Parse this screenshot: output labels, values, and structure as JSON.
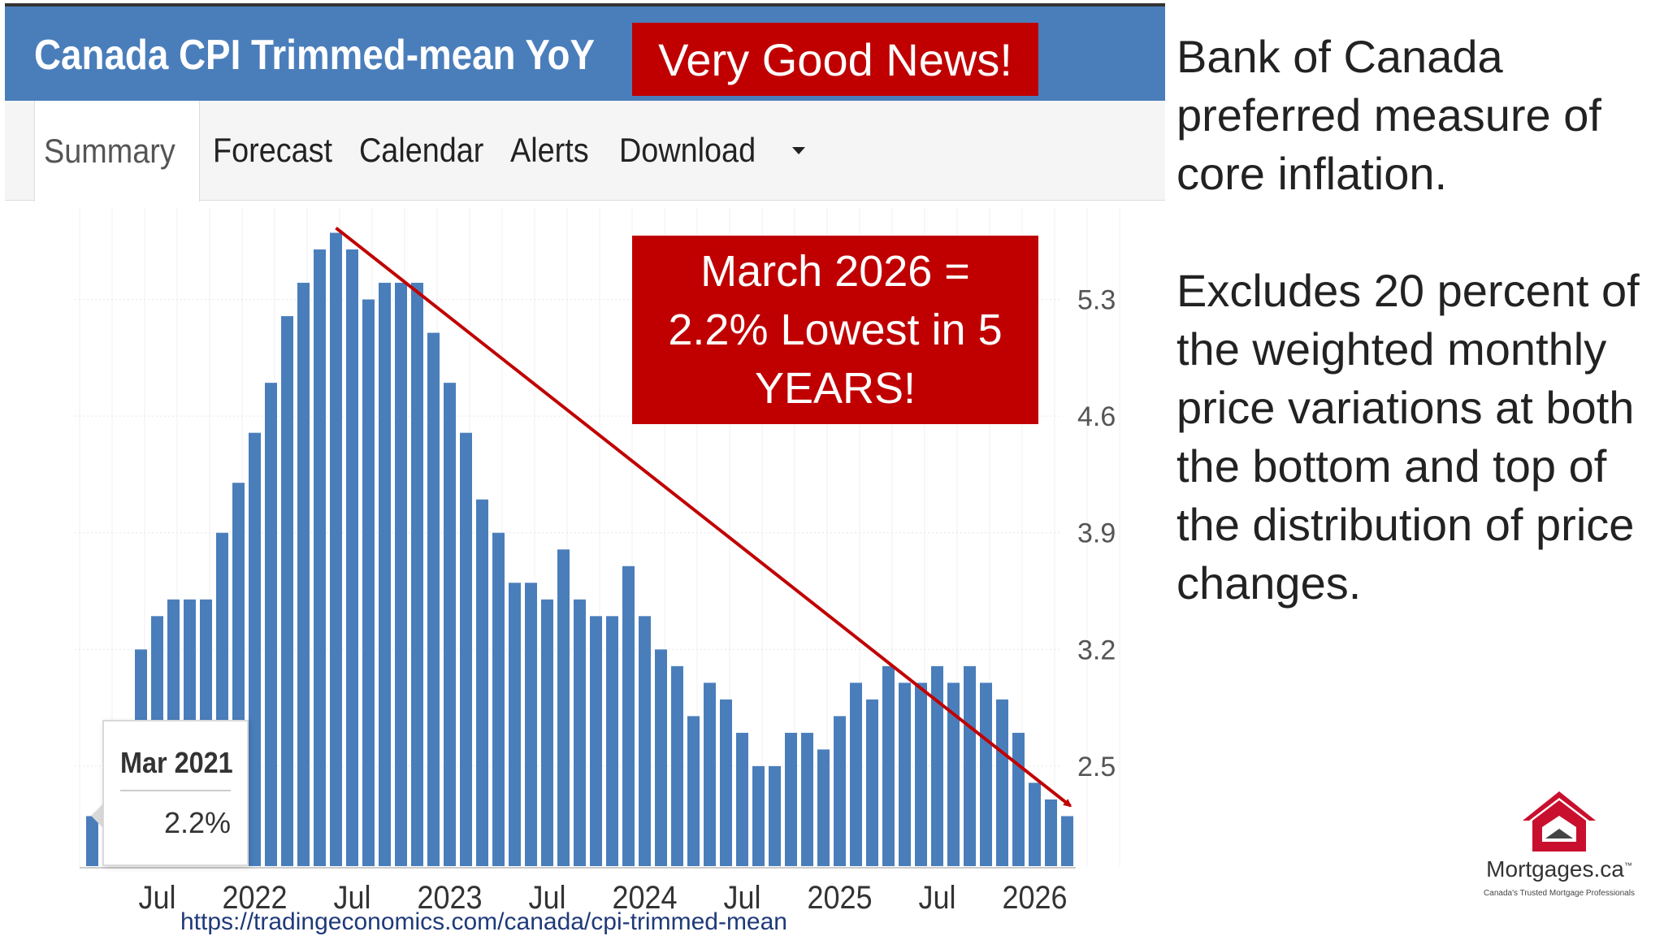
{
  "header": {
    "title": "Canada CPI Trimmed-mean YoY",
    "badge": "Very Good News!"
  },
  "tabs": [
    {
      "label": "Summary",
      "active": true
    },
    {
      "label": "Forecast"
    },
    {
      "label": "Calendar"
    },
    {
      "label": "Alerts"
    },
    {
      "label": "Download"
    }
  ],
  "callout": {
    "lines": [
      "March 2026 =",
      "2.2% Lowest in 5",
      "YEARS!"
    ]
  },
  "tooltip": {
    "date": "Mar 2021",
    "value": "2.2%"
  },
  "source_url": "https://tradingeconomics.com/canada/cpi-trimmed-mean",
  "side_text": {
    "para1": "Bank of Canada preferred measure of core inflation.",
    "para2": "Excludes 20 percent of the weighted monthly price variations at both the bottom and top of the distribution of price changes."
  },
  "logo": {
    "name": "Mortgages.ca",
    "tm": "™",
    "tagline": "Canada's Trusted Mortgage Professionals",
    "icon": "house-logo-icon"
  },
  "colors": {
    "header": "#4a7ebb",
    "bar": "#4a7ebb",
    "highlight_box": "#c00000",
    "trend_line": "#c00000"
  },
  "chart_data": {
    "type": "bar",
    "x_tick_labels": [
      "Jul",
      "2022",
      "Jul",
      "2023",
      "Jul",
      "2024",
      "Jul",
      "2025",
      "Jul",
      "2026"
    ],
    "y_tick_labels": [
      "2.5",
      "3.2",
      "3.9",
      "4.6",
      "5.3"
    ],
    "ylim": [
      1.9,
      5.8
    ],
    "start": "Mar 2021",
    "end": "Mar 2026",
    "values": [
      2.2,
      2.7,
      2.7,
      3.2,
      3.4,
      3.5,
      3.5,
      3.5,
      3.9,
      4.2,
      4.5,
      4.8,
      5.2,
      5.4,
      5.6,
      5.7,
      5.6,
      5.3,
      5.4,
      5.4,
      5.4,
      5.1,
      4.8,
      4.5,
      4.1,
      3.9,
      3.6,
      3.6,
      3.5,
      3.8,
      3.5,
      3.4,
      3.4,
      3.7,
      3.4,
      3.2,
      3.1,
      2.8,
      3.0,
      2.9,
      2.7,
      2.5,
      2.5,
      2.7,
      2.7,
      2.6,
      2.8,
      3.0,
      2.9,
      3.1,
      3.0,
      3.0,
      3.1,
      3.0,
      3.1,
      3.0,
      2.9,
      2.7,
      2.4,
      2.3,
      2.2
    ],
    "grid": true,
    "trend_line": {
      "from": "Jun 2022",
      "to": "Mar 2026",
      "from_value": 5.7,
      "to_value": 2.3
    }
  }
}
